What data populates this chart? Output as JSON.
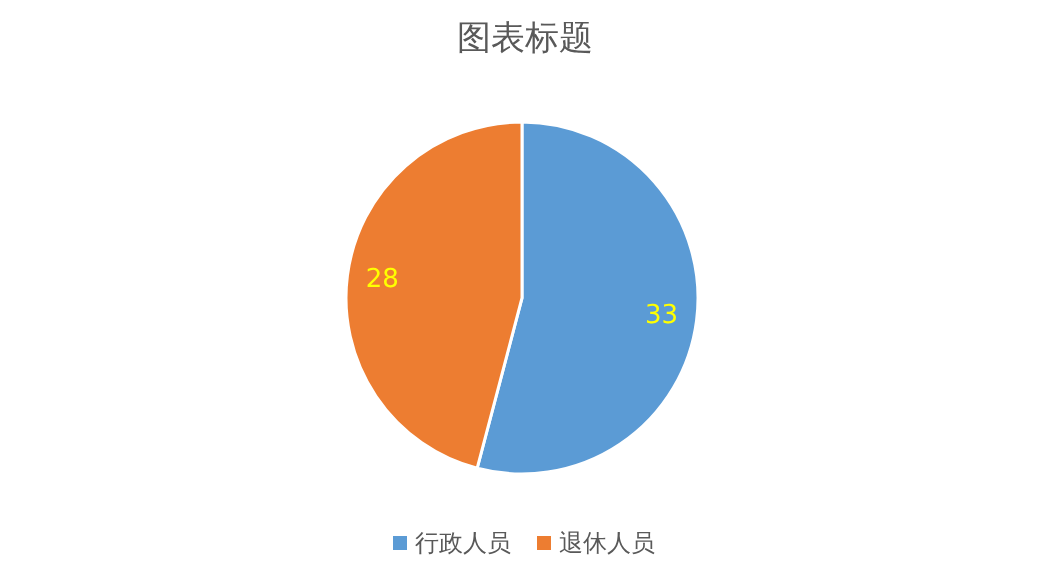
{
  "chart_data": {
    "type": "pie",
    "title": "图表标题",
    "categories": [
      "行政人员",
      "退休人员"
    ],
    "values": [
      33,
      28
    ],
    "colors": [
      "#5b9bd5",
      "#ed7d31"
    ],
    "data_labels": true,
    "legend": "bottom"
  }
}
